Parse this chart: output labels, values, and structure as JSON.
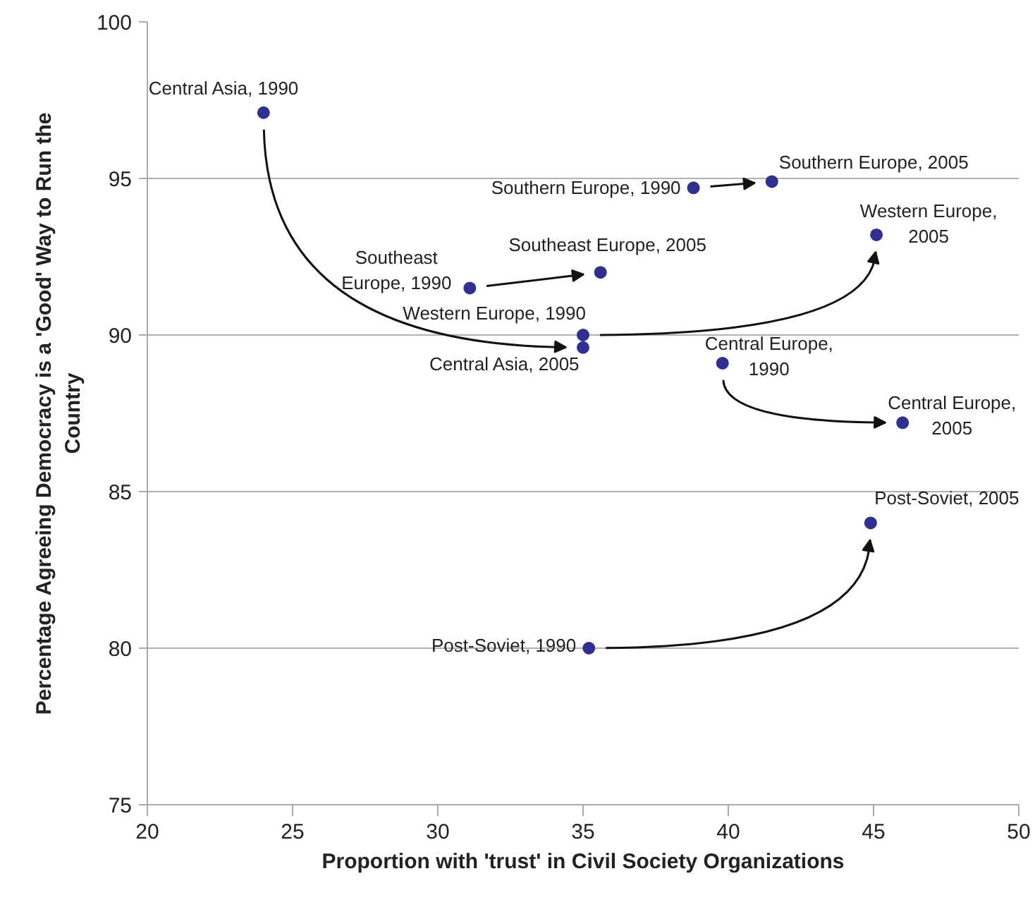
{
  "chart_data": {
    "type": "scatter",
    "xlabel": "Proportion with 'trust' in Civil Society Organizations",
    "ylabel": "Percentage Agreeing Democracy is a 'Good' Way to Run the\nCountry",
    "xlim": [
      20,
      50
    ],
    "ylim": [
      75,
      100
    ],
    "xticks": [
      20,
      25,
      30,
      35,
      40,
      45,
      50
    ],
    "yticks": [
      75,
      80,
      85,
      90,
      95,
      100
    ],
    "grid": "y",
    "marker": "circle",
    "series": [
      {
        "color": "#2e3192",
        "x": [
          24.0,
          35.0
        ],
        "values": [
          97.1,
          89.6
        ]
      },
      {
        "color": "#2e3192",
        "x": [
          38.8,
          41.5
        ],
        "values": [
          94.7,
          94.9
        ]
      },
      {
        "color": "#2e3192",
        "x": [
          31.1,
          35.6
        ],
        "values": [
          91.5,
          92.0
        ]
      },
      {
        "color": "#2e3192",
        "x": [
          35.0,
          45.1
        ],
        "values": [
          90.0,
          93.2
        ]
      },
      {
        "color": "#2e3192",
        "x": [
          39.8,
          46.0
        ],
        "values": [
          89.1,
          87.2
        ]
      },
      {
        "color": "#2e3192",
        "x": [
          35.2,
          44.9
        ],
        "values": [
          80.0,
          84.0
        ]
      }
    ],
    "annotations": [
      {
        "text": "Central Asia, 1990",
        "x": 24.0,
        "y": 97.1
      },
      {
        "text": "Central Asia, 2005",
        "x": 35.0,
        "y": 89.6
      },
      {
        "text": "Southern Europe, 1990",
        "x": 38.8,
        "y": 94.7
      },
      {
        "text": "Southern Europe, 2005",
        "x": 41.5,
        "y": 94.9
      },
      {
        "text": "Southeast\nEurope, 1990",
        "x": 31.1,
        "y": 91.5
      },
      {
        "text": "Southeast Europe, 2005",
        "x": 35.6,
        "y": 92.0
      },
      {
        "text": "Western Europe, 1990",
        "x": 35.0,
        "y": 90.0
      },
      {
        "text": "Western Europe,\n2005",
        "x": 45.1,
        "y": 93.2
      },
      {
        "text": "Central Europe,\n1990",
        "x": 39.8,
        "y": 89.1
      },
      {
        "text": "Central Europe,\n2005",
        "x": 46.0,
        "y": 87.2
      },
      {
        "text": "Post-Soviet, 1990",
        "x": 35.2,
        "y": 80.0
      },
      {
        "text": "Post-Soviet, 2005",
        "x": 44.9,
        "y": 84.0
      }
    ]
  }
}
